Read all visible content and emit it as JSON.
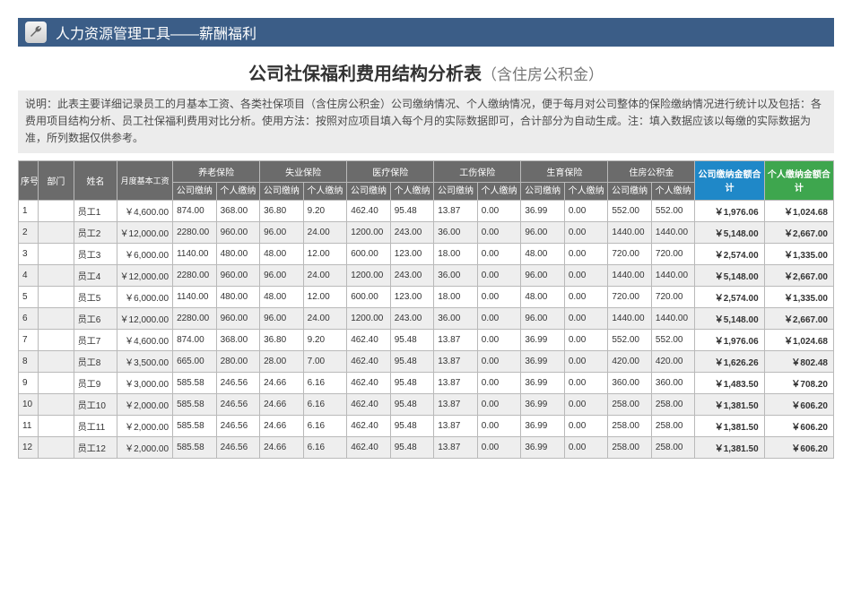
{
  "header": {
    "icon": "wrench-icon",
    "text": "人力资源管理工具——薪酬福利"
  },
  "title": {
    "main": "公司社保福利费用结构分析表",
    "sub": "（含住房公积金）"
  },
  "description": "说明：此表主要详细记录员工的月基本工资、各类社保项目（含住房公积金）公司缴纳情况、个人缴纳情况，便于每月对公司整体的保险缴纳情况进行统计以及包括：各费用项目结构分析、员工社保福利费用对比分析。使用方法：按照对应项目填入每个月的实际数据即可，合计部分为自动生成。注：填入数据应该以每缴的实际数据为准，所列数据仅供参考。",
  "columns": {
    "seq": "序号",
    "dept": "部门",
    "name": "姓名",
    "salary": "月度基本工资",
    "groups": [
      {
        "label": "养老保险",
        "company": "公司缴纳",
        "personal": "个人缴纳"
      },
      {
        "label": "失业保险",
        "company": "公司缴纳",
        "personal": "个人缴纳"
      },
      {
        "label": "医疗保险",
        "company": "公司缴纳",
        "personal": "个人缴纳"
      },
      {
        "label": "工伤保险",
        "company": "公司缴纳",
        "personal": "个人缴纳"
      },
      {
        "label": "生育保险",
        "company": "公司缴纳",
        "personal": "个人缴纳"
      },
      {
        "label": "住房公积金",
        "company": "公司缴纳",
        "personal": "个人缴纳"
      }
    ],
    "company_total": "公司缴纳金额合计",
    "personal_total": "个人缴纳金额合计"
  },
  "rows": [
    {
      "seq": "1",
      "dept": "",
      "name": "员工1",
      "salary": "￥4,600.00",
      "v": [
        "874.00",
        "368.00",
        "36.80",
        "9.20",
        "462.40",
        "95.48",
        "13.87",
        "0.00",
        "36.99",
        "0.00",
        "552.00",
        "552.00"
      ],
      "ct": "￥1,976.06",
      "pt": "￥1,024.68"
    },
    {
      "seq": "2",
      "dept": "",
      "name": "员工2",
      "salary": "￥12,000.00",
      "v": [
        "2280.00",
        "960.00",
        "96.00",
        "24.00",
        "1200.00",
        "243.00",
        "36.00",
        "0.00",
        "96.00",
        "0.00",
        "1440.00",
        "1440.00"
      ],
      "ct": "￥5,148.00",
      "pt": "￥2,667.00"
    },
    {
      "seq": "3",
      "dept": "",
      "name": "员工3",
      "salary": "￥6,000.00",
      "v": [
        "1140.00",
        "480.00",
        "48.00",
        "12.00",
        "600.00",
        "123.00",
        "18.00",
        "0.00",
        "48.00",
        "0.00",
        "720.00",
        "720.00"
      ],
      "ct": "￥2,574.00",
      "pt": "￥1,335.00"
    },
    {
      "seq": "4",
      "dept": "",
      "name": "员工4",
      "salary": "￥12,000.00",
      "v": [
        "2280.00",
        "960.00",
        "96.00",
        "24.00",
        "1200.00",
        "243.00",
        "36.00",
        "0.00",
        "96.00",
        "0.00",
        "1440.00",
        "1440.00"
      ],
      "ct": "￥5,148.00",
      "pt": "￥2,667.00"
    },
    {
      "seq": "5",
      "dept": "",
      "name": "员工5",
      "salary": "￥6,000.00",
      "v": [
        "1140.00",
        "480.00",
        "48.00",
        "12.00",
        "600.00",
        "123.00",
        "18.00",
        "0.00",
        "48.00",
        "0.00",
        "720.00",
        "720.00"
      ],
      "ct": "￥2,574.00",
      "pt": "￥1,335.00"
    },
    {
      "seq": "6",
      "dept": "",
      "name": "员工6",
      "salary": "￥12,000.00",
      "v": [
        "2280.00",
        "960.00",
        "96.00",
        "24.00",
        "1200.00",
        "243.00",
        "36.00",
        "0.00",
        "96.00",
        "0.00",
        "1440.00",
        "1440.00"
      ],
      "ct": "￥5,148.00",
      "pt": "￥2,667.00"
    },
    {
      "seq": "7",
      "dept": "",
      "name": "员工7",
      "salary": "￥4,600.00",
      "v": [
        "874.00",
        "368.00",
        "36.80",
        "9.20",
        "462.40",
        "95.48",
        "13.87",
        "0.00",
        "36.99",
        "0.00",
        "552.00",
        "552.00"
      ],
      "ct": "￥1,976.06",
      "pt": "￥1,024.68"
    },
    {
      "seq": "8",
      "dept": "",
      "name": "员工8",
      "salary": "￥3,500.00",
      "v": [
        "665.00",
        "280.00",
        "28.00",
        "7.00",
        "462.40",
        "95.48",
        "13.87",
        "0.00",
        "36.99",
        "0.00",
        "420.00",
        "420.00"
      ],
      "ct": "￥1,626.26",
      "pt": "￥802.48"
    },
    {
      "seq": "9",
      "dept": "",
      "name": "员工9",
      "salary": "￥3,000.00",
      "v": [
        "585.58",
        "246.56",
        "24.66",
        "6.16",
        "462.40",
        "95.48",
        "13.87",
        "0.00",
        "36.99",
        "0.00",
        "360.00",
        "360.00"
      ],
      "ct": "￥1,483.50",
      "pt": "￥708.20"
    },
    {
      "seq": "10",
      "dept": "",
      "name": "员工10",
      "salary": "￥2,000.00",
      "v": [
        "585.58",
        "246.56",
        "24.66",
        "6.16",
        "462.40",
        "95.48",
        "13.87",
        "0.00",
        "36.99",
        "0.00",
        "258.00",
        "258.00"
      ],
      "ct": "￥1,381.50",
      "pt": "￥606.20"
    },
    {
      "seq": "11",
      "dept": "",
      "name": "员工11",
      "salary": "￥2,000.00",
      "v": [
        "585.58",
        "246.56",
        "24.66",
        "6.16",
        "462.40",
        "95.48",
        "13.87",
        "0.00",
        "36.99",
        "0.00",
        "258.00",
        "258.00"
      ],
      "ct": "￥1,381.50",
      "pt": "￥606.20"
    },
    {
      "seq": "12",
      "dept": "",
      "name": "员工12",
      "salary": "￥2,000.00",
      "v": [
        "585.58",
        "246.56",
        "24.66",
        "6.16",
        "462.40",
        "95.48",
        "13.87",
        "0.00",
        "36.99",
        "0.00",
        "258.00",
        "258.00"
      ],
      "ct": "￥1,381.50",
      "pt": "￥606.20"
    }
  ],
  "colors": {
    "header_bar": "#3b5d87",
    "th_gray": "#6b6b6b",
    "th_blue": "#1f88c8",
    "th_green": "#3ea64e",
    "row_even": "#eeeeee",
    "row_odd": "#ffffff",
    "desc_bg": "#ececec"
  }
}
